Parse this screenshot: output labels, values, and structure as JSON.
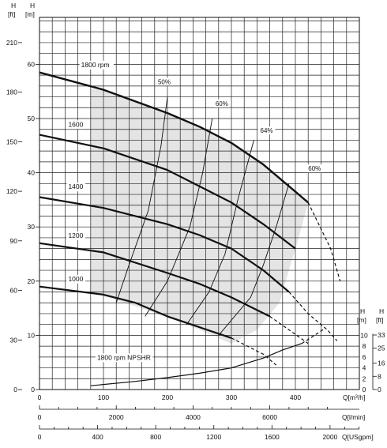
{
  "chart_data": {
    "type": "line",
    "axes": {
      "h_m": {
        "unit_label": "[m]",
        "name": "H",
        "ticks": [
          0,
          10,
          20,
          30,
          40,
          50,
          60
        ]
      },
      "h_ft": {
        "unit_label": "[ft]",
        "name": "H",
        "ticks": [
          0,
          30,
          60,
          90,
          120,
          150,
          180,
          210
        ]
      },
      "q_m3h": {
        "label": "Q[m³/h]",
        "ticks": [
          0,
          100,
          200,
          300,
          400
        ],
        "lim": [
          0,
          500
        ]
      },
      "q_lmin": {
        "label": "Q[l/min]",
        "ticks": [
          0,
          2000,
          4000,
          6000
        ]
      },
      "q_usgpm": {
        "label": "Q[USgpm]",
        "ticks": [
          0,
          400,
          800,
          1200,
          1600,
          2000
        ]
      },
      "npshr_m": {
        "unit_label": "[m]",
        "name": "H",
        "ticks": [
          0,
          2,
          4,
          6,
          8,
          10
        ]
      },
      "npshr_ft": {
        "unit_label": "[ft]",
        "name": "H",
        "ticks": [
          0,
          8,
          16,
          25,
          33
        ]
      }
    },
    "ylim_m": [
      0,
      63
    ],
    "grid": true,
    "series": [
      {
        "name": "1800 rpm",
        "x": [
          0,
          100,
          200,
          250,
          300,
          350,
          400,
          420
        ],
        "y": [
          58.5,
          55.3,
          51,
          48.5,
          45.5,
          41.5,
          36.5,
          34.5
        ]
      },
      {
        "name": "1600",
        "x": [
          0,
          100,
          200,
          300,
          350,
          400
        ],
        "y": [
          47,
          44.5,
          40.5,
          34.5,
          30.5,
          26
        ]
      },
      {
        "name": "1400",
        "x": [
          0,
          100,
          200,
          250,
          300,
          350,
          390
        ],
        "y": [
          35.5,
          33.5,
          30.5,
          28.5,
          26,
          22,
          18
        ]
      },
      {
        "name": "1200",
        "x": [
          0,
          100,
          200,
          250,
          300,
          360
        ],
        "y": [
          27,
          25.3,
          21.5,
          19.5,
          17,
          13.5
        ]
      },
      {
        "name": "1000",
        "x": [
          0,
          100,
          150,
          200,
          250,
          300
        ],
        "y": [
          19,
          17.5,
          16,
          13.5,
          11.5,
          9.5
        ]
      },
      {
        "name": "1800 rpm NPSHR",
        "x": [
          80,
          150,
          200,
          250,
          300,
          350,
          380,
          410
        ],
        "y": [
          0.7,
          1.5,
          2.2,
          3.0,
          4.0,
          5.8,
          7.3,
          8.5
        ]
      }
    ],
    "extensions": [
      {
        "x": [
          420,
          455,
          470
        ],
        "y": [
          34.5,
          26,
          20
        ]
      },
      {
        "x": [
          390,
          420,
          450,
          465
        ],
        "y": [
          18,
          14,
          11,
          9
        ]
      },
      {
        "x": [
          360,
          390,
          420
        ],
        "y": [
          13.5,
          11,
          8.5
        ]
      },
      {
        "x": [
          300,
          350,
          370
        ],
        "y": [
          9.5,
          6.5,
          4.5
        ]
      },
      {
        "x": [
          410,
          430,
          445
        ],
        "y": [
          8.5,
          10,
          11.2
        ]
      }
    ],
    "efficiency_lines": [
      {
        "label": "50%",
        "x": [
          120,
          140,
          170,
          190,
          200
        ],
        "y": [
          16,
          23,
          33,
          45,
          54
        ]
      },
      {
        "label": "60%",
        "x": [
          165,
          200,
          235,
          255,
          270
        ],
        "y": [
          13.5,
          20,
          30,
          40,
          50
        ]
      },
      {
        "label": "64%",
        "x": [
          230,
          265,
          290,
          310,
          335
        ],
        "y": [
          12,
          18,
          25,
          35,
          46
        ]
      },
      {
        "label": "60%",
        "x": [
          280,
          330,
          350,
          370,
          390
        ],
        "y": [
          10,
          17,
          23,
          30,
          38
        ]
      }
    ],
    "efficiency_labels": [
      {
        "text": "50%",
        "x": 195,
        "y": 56.5
      },
      {
        "text": "60%",
        "x": 285,
        "y": 52.5
      },
      {
        "text": "64%",
        "x": 355,
        "y": 47.5
      },
      {
        "text": "60%",
        "x": 430,
        "y": 40.5
      }
    ],
    "curve_labels": [
      {
        "text": "1800 rpm",
        "x": 65,
        "y": 59.5
      },
      {
        "text": "1600",
        "x": 45,
        "y": 48.5
      },
      {
        "text": "1400",
        "x": 45,
        "y": 37
      },
      {
        "text": "1200",
        "x": 45,
        "y": 28
      },
      {
        "text": "1000",
        "x": 45,
        "y": 20
      },
      {
        "text": "1800 rpm NPSHR",
        "x": 90,
        "y": 5.5
      }
    ]
  }
}
